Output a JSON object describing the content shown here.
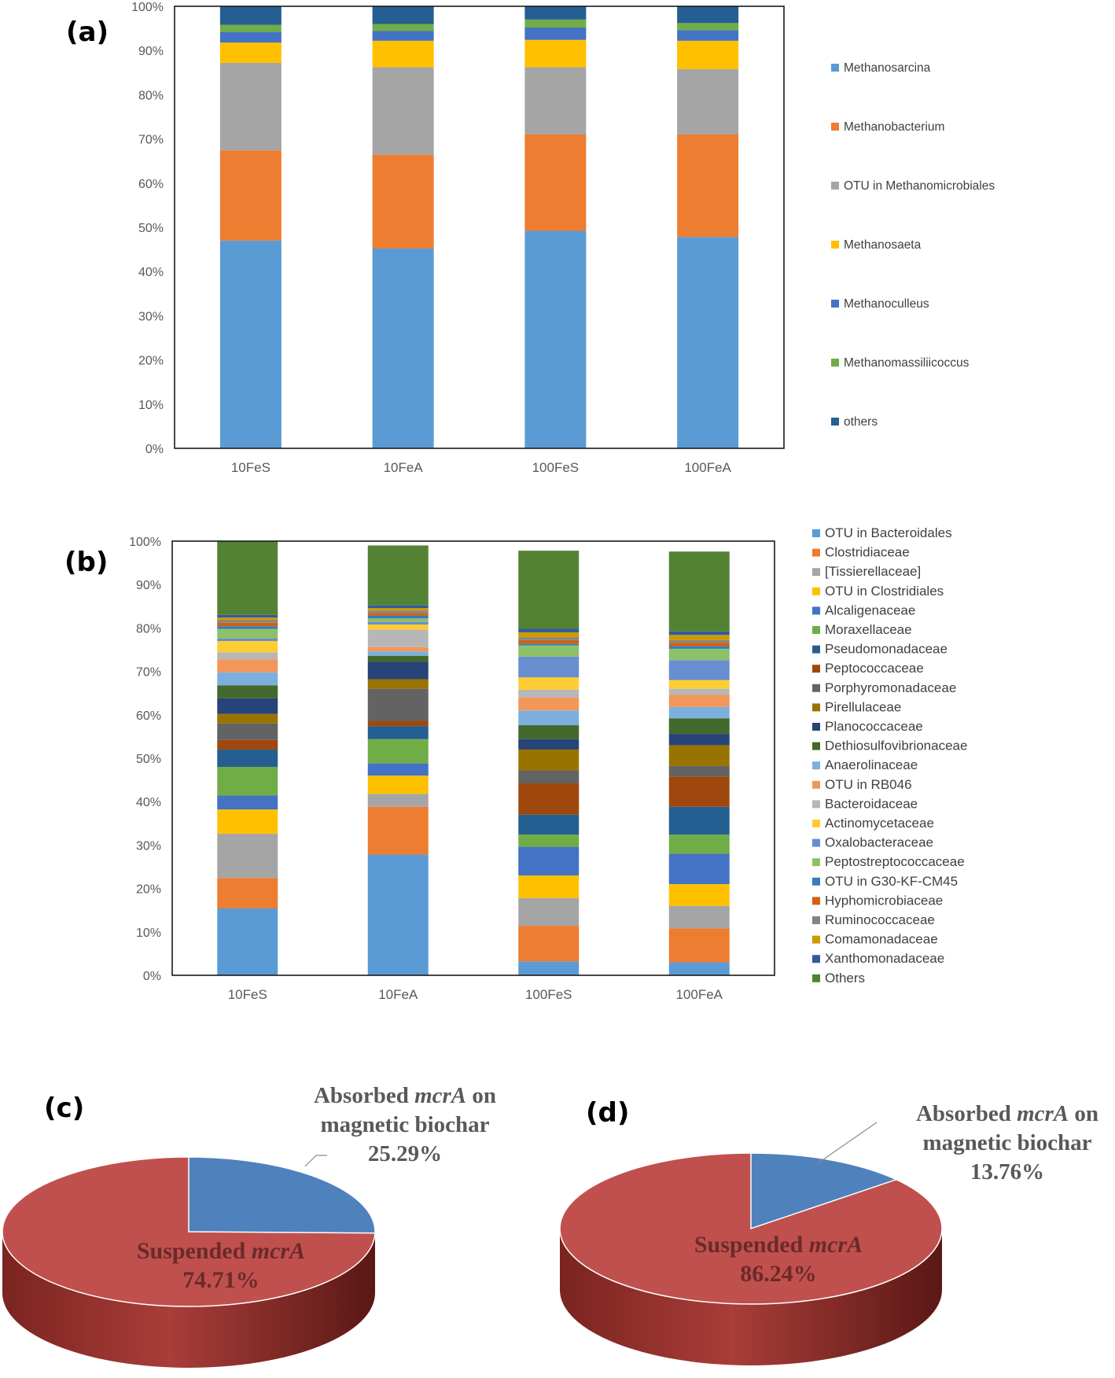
{
  "chart_data": [
    {
      "panel": "(a)",
      "type": "bar",
      "stacked": true,
      "title": "",
      "xlabel": "",
      "ylabel": "",
      "ylim": [
        0,
        100
      ],
      "yticks": [
        "0%",
        "10%",
        "20%",
        "30%",
        "40%",
        "50%",
        "60%",
        "70%",
        "80%",
        "90%",
        "100%"
      ],
      "categories": [
        "10FeS",
        "10FeA",
        "100FeS",
        "100FeA"
      ],
      "legend_position": "right",
      "series": [
        {
          "name": "Methanosarcina",
          "color": "#5b9bd5",
          "values": [
            47.0,
            45.2,
            49.2,
            47.8
          ]
        },
        {
          "name": "Methanobacterium",
          "color": "#ed7d31",
          "values": [
            20.4,
            21.2,
            21.8,
            23.2
          ]
        },
        {
          "name": "OTU in Methanomicrobiales",
          "color": "#a5a5a5",
          "values": [
            19.8,
            19.8,
            15.2,
            14.8
          ]
        },
        {
          "name": "Methanosaeta",
          "color": "#ffc000",
          "values": [
            4.6,
            6.0,
            6.2,
            6.4
          ]
        },
        {
          "name": "Methanoculleus",
          "color": "#4472c4",
          "values": [
            2.4,
            2.2,
            2.8,
            2.4
          ]
        },
        {
          "name": "Methanomassiliicoccus",
          "color": "#70ad47",
          "values": [
            1.6,
            1.6,
            1.8,
            1.6
          ]
        },
        {
          "name": "others",
          "color": "#255e91",
          "values": [
            4.2,
            4.0,
            3.0,
            3.8
          ]
        }
      ]
    },
    {
      "panel": "(b)",
      "type": "bar",
      "stacked": true,
      "title": "",
      "xlabel": "",
      "ylabel": "",
      "ylim": [
        0,
        100
      ],
      "yticks": [
        "0%",
        "10%",
        "20%",
        "30%",
        "40%",
        "50%",
        "60%",
        "70%",
        "80%",
        "90%",
        "100%"
      ],
      "categories": [
        "10FeS",
        "10FeA",
        "100FeS",
        "100FeA"
      ],
      "legend_position": "right",
      "series": [
        {
          "name": "OTU in Bacteroidales",
          "color": "#5b9bd5",
          "values": [
            15.4,
            27.8,
            3.2,
            3.0
          ]
        },
        {
          "name": "Clostridiaceae",
          "color": "#ed7d31",
          "values": [
            7.0,
            11.0,
            8.2,
            7.8
          ]
        },
        {
          "name": "[Tissierellaceae]",
          "color": "#a5a5a5",
          "values": [
            10.2,
            3.0,
            6.4,
            5.2
          ]
        },
        {
          "name": "OTU in Clostridiales",
          "color": "#ffc000",
          "values": [
            5.6,
            4.2,
            5.2,
            5.0
          ]
        },
        {
          "name": "Alcaligenaceae",
          "color": "#4472c4",
          "values": [
            3.2,
            2.8,
            6.6,
            7.0
          ]
        },
        {
          "name": "Moraxellaceae",
          "color": "#70ad47",
          "values": [
            6.6,
            5.6,
            2.8,
            4.4
          ]
        },
        {
          "name": "Pseudomonadaceae",
          "color": "#255e91",
          "values": [
            4.0,
            3.0,
            4.6,
            6.4
          ]
        },
        {
          "name": "Peptococcaceae",
          "color": "#9e480e",
          "values": [
            2.2,
            1.2,
            7.2,
            7.0
          ]
        },
        {
          "name": "Porphyromonadaceae",
          "color": "#636363",
          "values": [
            3.8,
            7.4,
            3.0,
            2.4
          ]
        },
        {
          "name": "Pirellulaceae",
          "color": "#997300",
          "values": [
            2.2,
            2.2,
            4.8,
            4.8
          ]
        },
        {
          "name": "Planococcaceae",
          "color": "#264478",
          "values": [
            3.6,
            4.0,
            2.4,
            2.6
          ]
        },
        {
          "name": "Dethiosulfovibrionaceae",
          "color": "#43682b",
          "values": [
            3.0,
            1.4,
            3.2,
            3.6
          ]
        },
        {
          "name": "Anaerolinaceae",
          "color": "#7cafdd",
          "values": [
            3.0,
            1.0,
            3.4,
            2.6
          ]
        },
        {
          "name": "OTU in RB046",
          "color": "#f1975a",
          "values": [
            3.0,
            1.0,
            3.0,
            2.8
          ]
        },
        {
          "name": "Bacteroidaceae",
          "color": "#b7b7b7",
          "values": [
            1.6,
            4.0,
            1.8,
            1.4
          ]
        },
        {
          "name": "Actinomycetaceae",
          "color": "#ffcd33",
          "values": [
            2.6,
            1.2,
            2.8,
            2.0
          ]
        },
        {
          "name": "Oxalobacteraceae",
          "color": "#698ed0",
          "values": [
            0.6,
            0.6,
            4.8,
            4.6
          ]
        },
        {
          "name": "Peptostreptococcaceae",
          "color": "#8cc168",
          "values": [
            2.2,
            0.8,
            2.6,
            2.6
          ]
        },
        {
          "name": "OTU in G30-KF-CM45",
          "color": "#327dc2",
          "values": [
            0.6,
            0.6,
            0.4,
            0.6
          ]
        },
        {
          "name": "Hyphomicrobiaceae",
          "color": "#d26012",
          "values": [
            0.8,
            0.6,
            0.8,
            0.8
          ]
        },
        {
          "name": "Ruminococcaceae",
          "color": "#848484",
          "values": [
            0.6,
            0.6,
            0.6,
            0.6
          ]
        },
        {
          "name": "Comamonadaceae",
          "color": "#cc9a00",
          "values": [
            0.6,
            0.6,
            1.2,
            1.2
          ]
        },
        {
          "name": "Xanthomonadaceae",
          "color": "#335aa1",
          "values": [
            0.6,
            0.6,
            0.8,
            0.8
          ]
        },
        {
          "name": "Others",
          "color": "#548235",
          "values": [
            17.0,
            13.8,
            18.0,
            18.4
          ]
        }
      ]
    },
    {
      "panel": "(c)",
      "type": "pie",
      "style": "3d",
      "slices": [
        {
          "name": "Absorbed",
          "name_italic": "mcrA",
          "name_suffix": "on",
          "line2": "magnetic biochar",
          "value": 25.29,
          "label": "25.29%",
          "color": "#4f81bd"
        },
        {
          "name": "Suspended",
          "name_italic": "mcrA",
          "name_suffix": "",
          "line2": "",
          "value": 74.71,
          "label": "74.71%",
          "color": "#c0504d"
        }
      ]
    },
    {
      "panel": "(d)",
      "type": "pie",
      "style": "3d",
      "slices": [
        {
          "name": "Absorbed",
          "name_italic": "mcrA",
          "name_suffix": "on",
          "line2": "magnetic biochar",
          "value": 13.76,
          "label": "13.76%",
          "color": "#4f81bd"
        },
        {
          "name": "Suspended",
          "name_italic": "mcrA",
          "name_suffix": "",
          "line2": "",
          "value": 86.24,
          "label": "86.24%",
          "color": "#c0504d"
        }
      ]
    }
  ]
}
